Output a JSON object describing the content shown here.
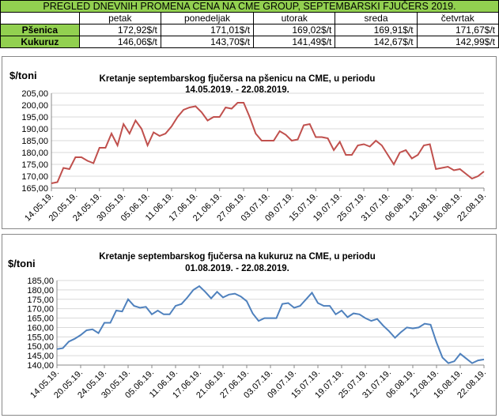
{
  "table": {
    "title": "PREGLED DNEVNIH PROMENA CENA NA CME GROUP, SEPTEMBARSKI  FJUČERS 2019.",
    "columns": [
      "petak",
      "ponedeljak",
      "utorak",
      "sreda",
      "četvrtak"
    ],
    "rows": [
      {
        "label": "Pšenica",
        "cells": [
          "172,92$/t",
          "171,01$/t",
          "169,02$/t",
          "169,91$/t",
          "171,67$/t"
        ]
      },
      {
        "label": "Kukuruz",
        "cells": [
          "146,06$/t",
          "143,70$/t",
          "141,49$/t",
          "142,67$/t",
          "142,99$/t"
        ]
      }
    ]
  },
  "chart_data": [
    {
      "type": "line",
      "title": "Kretanje septembarskog fjučersa na  pšenicu na CME, u periodu",
      "subtitle": "14.05.2019. - 22.08.2019.",
      "ylabel": "$/toni",
      "color": "#c0504d",
      "grid": true,
      "ylim": [
        165,
        205
      ],
      "yticks": [
        {
          "value": 165,
          "label": "165,00"
        },
        {
          "value": 170,
          "label": "170,00"
        },
        {
          "value": 175,
          "label": "175,00"
        },
        {
          "value": 180,
          "label": "180,00"
        },
        {
          "value": 185,
          "label": "185,00"
        },
        {
          "value": 190,
          "label": "190,00"
        },
        {
          "value": 195,
          "label": "195,00"
        },
        {
          "value": 200,
          "label": "200,00"
        },
        {
          "value": 205,
          "label": "205,00"
        }
      ],
      "categories": [
        "14.05.19.",
        null,
        null,
        null,
        "20.05.19.",
        null,
        null,
        null,
        "24.05.19.",
        null,
        null,
        null,
        "30.05.19.",
        null,
        null,
        null,
        "05.06.19.",
        null,
        null,
        null,
        "11.06.19.",
        null,
        null,
        null,
        "17.06.19.",
        null,
        null,
        null,
        "21.06.19.",
        null,
        null,
        null,
        "27.06.19.",
        null,
        null,
        null,
        "03.07.19.",
        null,
        null,
        null,
        "09.07.19.",
        null,
        null,
        null,
        "15.07.19.",
        null,
        null,
        null,
        "19.07.19.",
        null,
        null,
        null,
        "25.07.19.",
        null,
        null,
        null,
        "31.07.19.",
        null,
        null,
        null,
        "06.08.19.",
        null,
        null,
        null,
        "12.08.19.",
        null,
        null,
        null,
        "16.08.19.",
        null,
        null,
        null,
        "22.08.19."
      ],
      "values": [
        167,
        167.5,
        173.5,
        173,
        178,
        178,
        176.5,
        175.5,
        182,
        182,
        188,
        183,
        192,
        188,
        193.5,
        190,
        183,
        188.5,
        187,
        188,
        191,
        195,
        198,
        199,
        199.5,
        197,
        193.5,
        195,
        195,
        199,
        198.5,
        201,
        201,
        195,
        188,
        185,
        185,
        185,
        189,
        187.5,
        185,
        185.5,
        191.5,
        192,
        186.5,
        186.5,
        186,
        181,
        184.5,
        179,
        179,
        183,
        183.5,
        182.5,
        185,
        183,
        179,
        175,
        180,
        181,
        177.5,
        179,
        183,
        183.5,
        173,
        173.5,
        174,
        172.5,
        173,
        171,
        169,
        170,
        172
      ]
    },
    {
      "type": "line",
      "title": "Kretanje septembarskog fjučersa na  kukuruz na CME, u periodu",
      "subtitle": "01.08.2019. - 22.08.2019.",
      "ylabel": "$/toni",
      "color": "#4f81bd",
      "grid": true,
      "ylim": [
        140,
        185
      ],
      "yticks": [
        {
          "value": 140,
          "label": "140,00"
        },
        {
          "value": 145,
          "label": "145,00"
        },
        {
          "value": 150,
          "label": "150,00"
        },
        {
          "value": 155,
          "label": "155,00"
        },
        {
          "value": 160,
          "label": "160,00"
        },
        {
          "value": 165,
          "label": "165,00"
        },
        {
          "value": 170,
          "label": "170,00"
        },
        {
          "value": 175,
          "label": "175,00"
        },
        {
          "value": 180,
          "label": "180,00"
        },
        {
          "value": 185,
          "label": "185,00"
        }
      ],
      "categories": [
        "14.05.19.",
        null,
        null,
        null,
        "20.05.19.",
        null,
        null,
        null,
        "24.05.19.",
        null,
        null,
        null,
        "30.05.19.",
        null,
        null,
        null,
        "05.06.19.",
        null,
        null,
        null,
        "11.06.19.",
        null,
        null,
        null,
        "17.06.19.",
        null,
        null,
        null,
        "21.06.19.",
        null,
        null,
        null,
        "27.06.19.",
        null,
        null,
        null,
        "03.07.19.",
        null,
        null,
        null,
        "09.07.19.",
        null,
        null,
        null,
        "15.07.19.",
        null,
        null,
        null,
        "19.07.19.",
        null,
        null,
        null,
        "25.07.19.",
        null,
        null,
        null,
        "31.07.19.",
        null,
        null,
        null,
        "06.08.19.",
        null,
        null,
        null,
        "12.08.19.",
        null,
        null,
        null,
        "16.08.19.",
        null,
        null,
        null,
        "22.08.19."
      ],
      "values": [
        148.5,
        149,
        152.5,
        154,
        156,
        158.5,
        159,
        157,
        162.5,
        162.5,
        169,
        168.5,
        175,
        171.5,
        170.5,
        171,
        167,
        169,
        167,
        167,
        171.5,
        172.5,
        176,
        180,
        182,
        179,
        175.5,
        179,
        176,
        177.5,
        178,
        176.5,
        174,
        167.5,
        163.5,
        165,
        165,
        165,
        172.5,
        173,
        170.5,
        171.5,
        175,
        178.5,
        173,
        171.5,
        171.5,
        167,
        169,
        165.5,
        167.5,
        167,
        165,
        163.5,
        164.5,
        161,
        158,
        154.5,
        157.5,
        160,
        159.5,
        160,
        162,
        161.5,
        152,
        144,
        141,
        142,
        146,
        143.5,
        141,
        142.5,
        143
      ]
    }
  ]
}
